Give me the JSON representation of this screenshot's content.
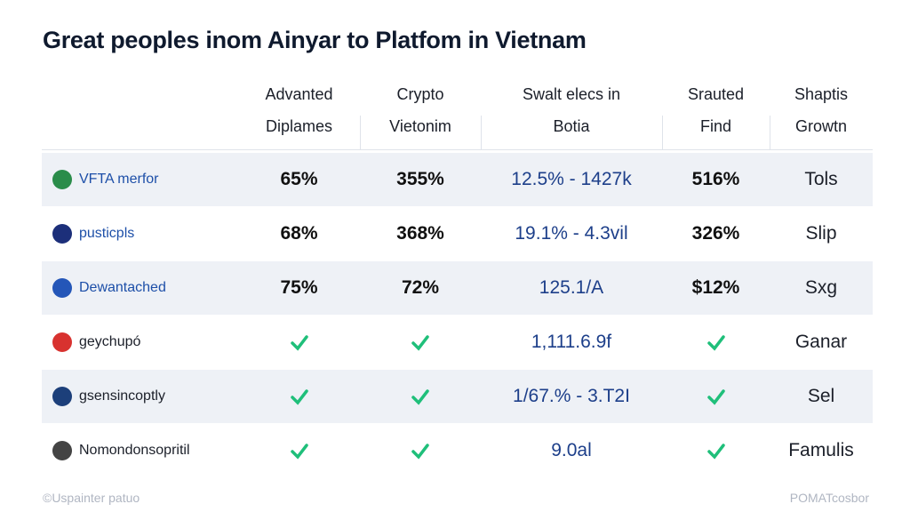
{
  "title": "Great peoples inom Ainyar to Platfom in Vietnam",
  "columns": [
    [
      "Advanted",
      "Diplames"
    ],
    [
      "Crypto",
      "Vietonim"
    ],
    [
      "Swalt elecs in",
      "Botia"
    ],
    [
      "Srauted",
      "Find"
    ],
    [
      "Shaptis",
      "Growtn"
    ]
  ],
  "rows": [
    {
      "name": "VFTA merfor",
      "cells": [
        "65%",
        "355%",
        "12.5% - 1427k",
        "516%",
        "Tols"
      ]
    },
    {
      "name": "pusticpls",
      "cells": [
        "68%",
        "368%",
        "19.1% - 4.3vil",
        "326%",
        "Slip"
      ]
    },
    {
      "name": "Dewantached",
      "cells": [
        "75%",
        "72%",
        "125.1/A",
        "$12%",
        "Sxg"
      ]
    },
    {
      "name": "geychupó",
      "cells": [
        true,
        true,
        "1,111.6.9f",
        true,
        "Ganar"
      ]
    },
    {
      "name": "gsensincoptly",
      "cells": [
        true,
        true,
        "1/67.% - 3.T2I",
        true,
        "Sel"
      ]
    },
    {
      "name": "Nomondonsopritil",
      "cells": [
        true,
        true,
        "9.0al",
        true,
        "Famulis"
      ]
    }
  ],
  "footer": {
    "left": "©Uspainter patuo",
    "right": "POMATcosbor"
  }
}
